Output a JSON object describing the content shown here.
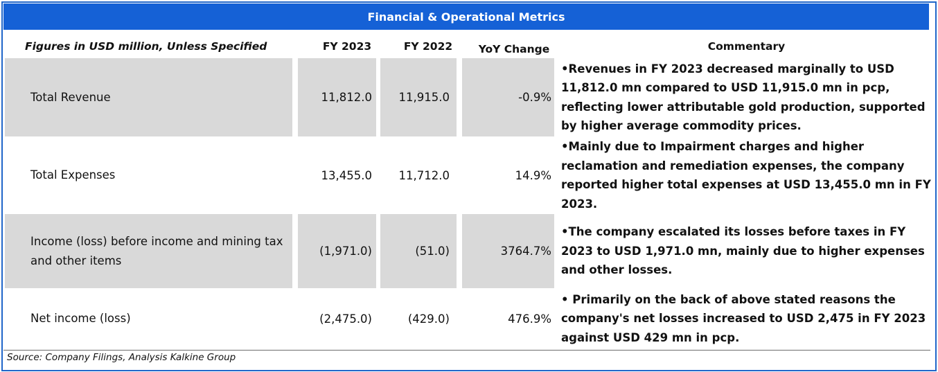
{
  "title": "Financial & Operational Metrics",
  "headers": {
    "label": "Figures in USD million, Unless Specified",
    "fy2023": "FY 2023",
    "fy2022": "FY 2022",
    "yoy": "YoY Change",
    "commentary": "Commentary"
  },
  "rows": [
    {
      "label": "Total Revenue",
      "fy2023": "11,812.0",
      "fy2022": "11,915.0",
      "yoy": "-0.9%",
      "commentary": "•Revenues in FY 2023 decreased marginally to USD 11,812.0 mn compared to USD 11,915.0 mn in pcp, reflecting lower attributable gold production, supported by higher  average  commodity  prices."
    },
    {
      "label": "Total Expenses",
      "fy2023": "13,455.0",
      "fy2022": "11,712.0",
      "yoy": "14.9%",
      "commentary": "•Mainly due to Impairment charges and higher reclamation and remediation expenses, the company reported higher total expenses at USD 13,455.0 mn in FY 2023."
    },
    {
      "label": "Income (loss) before income and mining tax and other items",
      "fy2023": "(1,971.0)",
      "fy2022": "(51.0)",
      "yoy": "3764.7%",
      "commentary": "•The company escalated its losses before taxes in FY 2023 to USD 1,971.0 mn, mainly due to higher expenses and other losses."
    },
    {
      "label": "Net income (loss)",
      "fy2023": "(2,475.0)",
      "fy2022": "(429.0)",
      "yoy": "476.9%",
      "commentary": "• Primarily on the back of above stated reasons the company's net losses increased to USD 2,475 in FY 2023 against USD 429 mn in pcp."
    }
  ],
  "source": "Source: Company Filings, Analysis Kalkine Group",
  "colors": {
    "title_bg": "#1561d6",
    "border": "#1f66c9",
    "row_shade": "#d9d9d9"
  }
}
